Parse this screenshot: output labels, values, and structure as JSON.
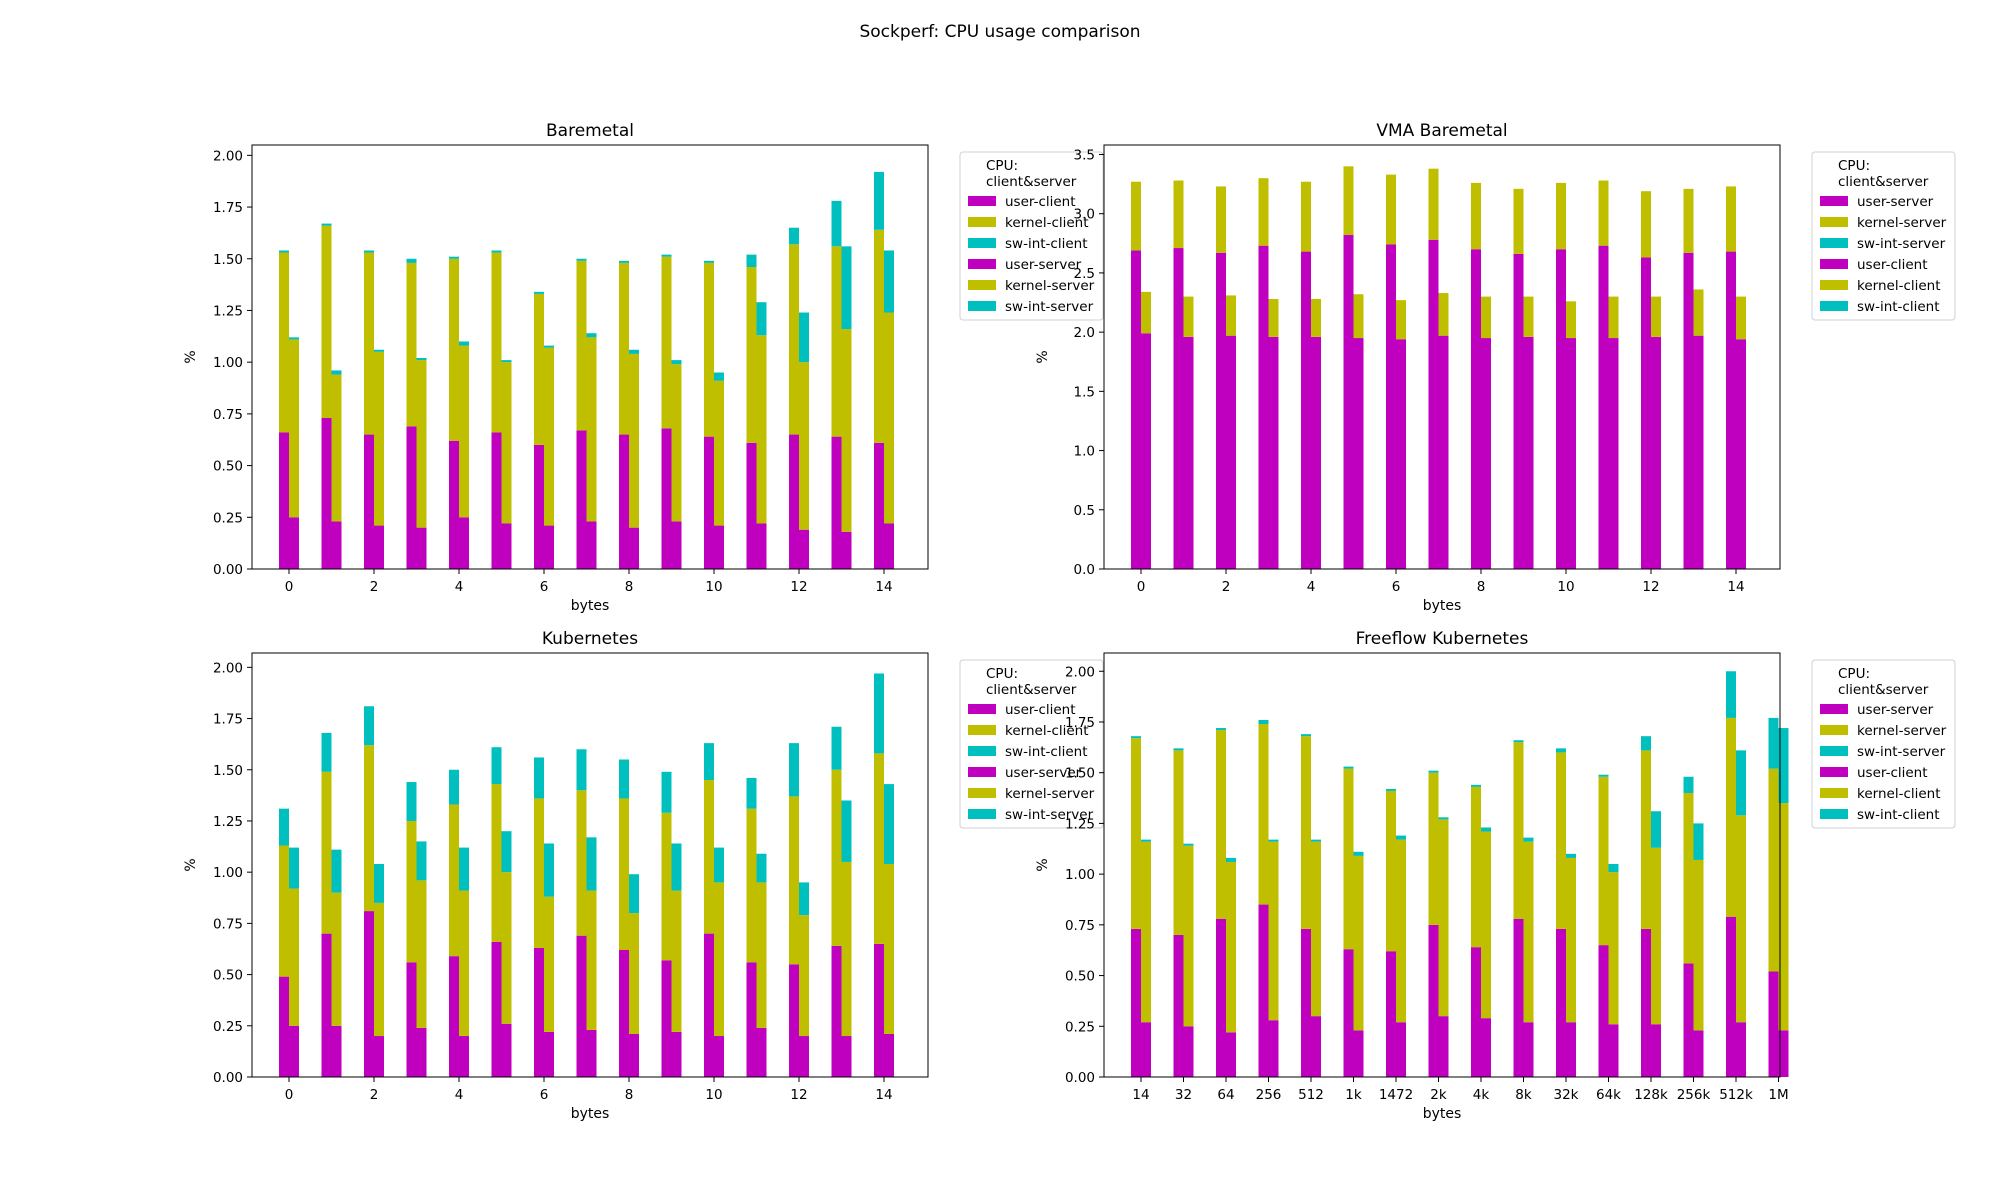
{
  "suptitle": "Sockperf: CPU usage comparison",
  "colors": {
    "user": "#bf00bf",
    "kernel": "#bfbf00",
    "swint": "#00bfbf"
  },
  "chart_data": [
    {
      "type": "bar",
      "title": "Baremetal",
      "xlabel": "bytes",
      "ylabel": "%",
      "ylim": [
        0,
        2.05
      ],
      "yticks": [
        "0.00",
        "0.25",
        "0.50",
        "0.75",
        "1.00",
        "1.25",
        "1.50",
        "1.75",
        "2.00"
      ],
      "xticks": [
        "0",
        "2",
        "4",
        "6",
        "8",
        "10",
        "12",
        "14"
      ],
      "legend_title": "CPU:\nclient&server",
      "legend_placement": "outside-right",
      "series": [
        {
          "name": "user-client",
          "color": "#bf00bf",
          "values": [
            0.66,
            0.73,
            0.65,
            0.69,
            0.62,
            0.66,
            0.6,
            0.67,
            0.65,
            0.68,
            0.64,
            0.61,
            0.65,
            0.64,
            0.61
          ]
        },
        {
          "name": "kernel-client",
          "color": "#bfbf00",
          "values": [
            0.87,
            0.93,
            0.88,
            0.79,
            0.88,
            0.87,
            0.73,
            0.82,
            0.83,
            0.83,
            0.84,
            0.85,
            0.92,
            0.92,
            1.03
          ]
        },
        {
          "name": "sw-int-client",
          "color": "#00bfbf",
          "values": [
            0.01,
            0.01,
            0.01,
            0.02,
            0.01,
            0.01,
            0.01,
            0.01,
            0.01,
            0.01,
            0.01,
            0.06,
            0.08,
            0.22,
            0.28
          ]
        },
        {
          "name": "user-server",
          "color": "#bf00bf",
          "values": [
            0.25,
            0.23,
            0.21,
            0.2,
            0.25,
            0.22,
            0.21,
            0.23,
            0.2,
            0.23,
            0.21,
            0.22,
            0.19,
            0.18,
            0.22
          ]
        },
        {
          "name": "kernel-server",
          "color": "#bfbf00",
          "values": [
            0.86,
            0.71,
            0.84,
            0.81,
            0.83,
            0.78,
            0.86,
            0.89,
            0.84,
            0.76,
            0.7,
            0.91,
            0.81,
            0.98,
            1.02
          ]
        },
        {
          "name": "sw-int-server",
          "color": "#00bfbf",
          "values": [
            0.01,
            0.02,
            0.01,
            0.01,
            0.02,
            0.01,
            0.01,
            0.02,
            0.02,
            0.02,
            0.04,
            0.16,
            0.24,
            0.4,
            0.3
          ]
        }
      ]
    },
    {
      "type": "bar",
      "title": "VMA Baremetal",
      "xlabel": "bytes",
      "ylabel": "%",
      "ylim": [
        0,
        3.58
      ],
      "yticks": [
        "0.0",
        "0.5",
        "1.0",
        "1.5",
        "2.0",
        "2.5",
        "3.0",
        "3.5"
      ],
      "xticks": [
        "0",
        "2",
        "4",
        "6",
        "8",
        "10",
        "12",
        "14"
      ],
      "legend_title": "CPU:\nclient&server",
      "legend_placement": "outside-right",
      "series": [
        {
          "name": "user-server",
          "color": "#bf00bf",
          "values": [
            2.69,
            2.71,
            2.67,
            2.73,
            2.68,
            2.82,
            2.74,
            2.78,
            2.7,
            2.66,
            2.7,
            2.73,
            2.63,
            2.67,
            2.68
          ]
        },
        {
          "name": "kernel-server",
          "color": "#bfbf00",
          "values": [
            0.58,
            0.57,
            0.56,
            0.57,
            0.59,
            0.58,
            0.59,
            0.6,
            0.56,
            0.55,
            0.56,
            0.55,
            0.56,
            0.54,
            0.55
          ]
        },
        {
          "name": "sw-int-server",
          "color": "#00bfbf",
          "values": [
            0,
            0,
            0,
            0,
            0,
            0,
            0,
            0,
            0,
            0,
            0,
            0,
            0,
            0,
            0
          ]
        },
        {
          "name": "user-client",
          "color": "#bf00bf",
          "values": [
            1.99,
            1.96,
            1.97,
            1.96,
            1.96,
            1.95,
            1.94,
            1.97,
            1.95,
            1.96,
            1.95,
            1.95,
            1.96,
            1.97,
            1.94
          ]
        },
        {
          "name": "kernel-client",
          "color": "#bfbf00",
          "values": [
            0.35,
            0.34,
            0.34,
            0.32,
            0.32,
            0.37,
            0.33,
            0.36,
            0.35,
            0.34,
            0.31,
            0.35,
            0.34,
            0.39,
            0.36
          ]
        },
        {
          "name": "sw-int-client",
          "color": "#00bfbf",
          "values": [
            0,
            0,
            0,
            0,
            0,
            0,
            0,
            0,
            0,
            0,
            0,
            0,
            0,
            0,
            0
          ]
        }
      ]
    },
    {
      "type": "bar",
      "title": "Kubernetes",
      "xlabel": "bytes",
      "ylabel": "%",
      "ylim": [
        0,
        2.07
      ],
      "yticks": [
        "0.00",
        "0.25",
        "0.50",
        "0.75",
        "1.00",
        "1.25",
        "1.50",
        "1.75",
        "2.00"
      ],
      "xticks": [
        "0",
        "2",
        "4",
        "6",
        "8",
        "10",
        "12",
        "14"
      ],
      "legend_title": "CPU:\nclient&server",
      "legend_placement": "outside-right",
      "series": [
        {
          "name": "user-client",
          "color": "#bf00bf",
          "values": [
            0.49,
            0.7,
            0.81,
            0.56,
            0.59,
            0.66,
            0.63,
            0.69,
            0.62,
            0.57,
            0.7,
            0.56,
            0.55,
            0.64,
            0.65
          ]
        },
        {
          "name": "kernel-client",
          "color": "#bfbf00",
          "values": [
            0.64,
            0.79,
            0.81,
            0.69,
            0.74,
            0.77,
            0.73,
            0.71,
            0.74,
            0.72,
            0.75,
            0.75,
            0.82,
            0.86,
            0.93
          ]
        },
        {
          "name": "sw-int-client",
          "color": "#00bfbf",
          "values": [
            0.18,
            0.19,
            0.19,
            0.19,
            0.17,
            0.18,
            0.2,
            0.2,
            0.19,
            0.2,
            0.18,
            0.15,
            0.26,
            0.21,
            0.39
          ]
        },
        {
          "name": "user-server",
          "color": "#bf00bf",
          "values": [
            0.25,
            0.25,
            0.2,
            0.24,
            0.2,
            0.26,
            0.22,
            0.23,
            0.21,
            0.22,
            0.2,
            0.24,
            0.2,
            0.2,
            0.21
          ]
        },
        {
          "name": "kernel-server",
          "color": "#bfbf00",
          "values": [
            0.67,
            0.65,
            0.65,
            0.72,
            0.71,
            0.74,
            0.66,
            0.68,
            0.59,
            0.69,
            0.75,
            0.71,
            0.59,
            0.85,
            0.83
          ]
        },
        {
          "name": "sw-int-server",
          "color": "#00bfbf",
          "values": [
            0.2,
            0.21,
            0.19,
            0.19,
            0.21,
            0.2,
            0.26,
            0.26,
            0.19,
            0.23,
            0.17,
            0.14,
            0.16,
            0.3,
            0.39
          ]
        }
      ]
    },
    {
      "type": "bar",
      "title": "Freeflow Kubernetes",
      "xlabel": "bytes",
      "ylabel": "%",
      "ylim": [
        0,
        2.09
      ],
      "yticks": [
        "0.00",
        "0.25",
        "0.50",
        "0.75",
        "1.00",
        "1.25",
        "1.50",
        "1.75",
        "2.00"
      ],
      "xticks": [
        "14",
        "32",
        "64",
        "256",
        "512",
        "1k",
        "1472",
        "2k",
        "4k",
        "8k",
        "32k",
        "64k",
        "128k",
        "256k",
        "512k",
        "1M"
      ],
      "legend_title": "CPU:\nclient&server",
      "legend_placement": "outside-right",
      "series": [
        {
          "name": "user-server",
          "color": "#bf00bf",
          "values": [
            0.73,
            0.7,
            0.78,
            0.85,
            0.73,
            0.63,
            0.62,
            0.75,
            0.64,
            0.78,
            0.73,
            0.65,
            0.73,
            0.56,
            0.79,
            0.52
          ]
        },
        {
          "name": "kernel-server",
          "color": "#bfbf00",
          "values": [
            0.94,
            0.91,
            0.93,
            0.89,
            0.95,
            0.89,
            0.79,
            0.75,
            0.79,
            0.87,
            0.87,
            0.83,
            0.88,
            0.84,
            0.98,
            1.0
          ]
        },
        {
          "name": "sw-int-server",
          "color": "#00bfbf",
          "values": [
            0.01,
            0.01,
            0.01,
            0.02,
            0.01,
            0.01,
            0.01,
            0.01,
            0.01,
            0.01,
            0.02,
            0.01,
            0.07,
            0.08,
            0.23,
            0.25
          ]
        },
        {
          "name": "user-client",
          "color": "#bf00bf",
          "values": [
            0.27,
            0.25,
            0.22,
            0.28,
            0.3,
            0.23,
            0.27,
            0.3,
            0.29,
            0.27,
            0.27,
            0.26,
            0.26,
            0.23,
            0.27,
            0.23
          ]
        },
        {
          "name": "kernel-client",
          "color": "#bfbf00",
          "values": [
            0.89,
            0.89,
            0.84,
            0.88,
            0.86,
            0.86,
            0.9,
            0.97,
            0.92,
            0.89,
            0.81,
            0.75,
            0.87,
            0.84,
            1.02,
            1.12
          ]
        },
        {
          "name": "sw-int-client",
          "color": "#00bfbf",
          "values": [
            0.01,
            0.01,
            0.02,
            0.01,
            0.01,
            0.02,
            0.02,
            0.01,
            0.02,
            0.02,
            0.02,
            0.04,
            0.18,
            0.18,
            0.32,
            0.37
          ]
        }
      ]
    }
  ]
}
